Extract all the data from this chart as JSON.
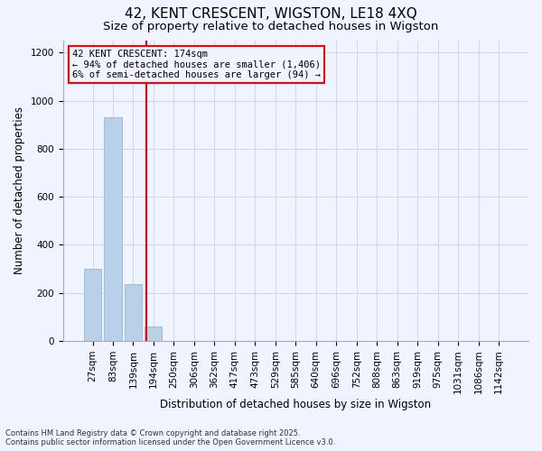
{
  "title": "42, KENT CRESCENT, WIGSTON, LE18 4XQ",
  "subtitle": "Size of property relative to detached houses in Wigston",
  "xlabel": "Distribution of detached houses by size in Wigston",
  "ylabel": "Number of detached properties",
  "categories": [
    "27sqm",
    "83sqm",
    "139sqm",
    "194sqm",
    "250sqm",
    "306sqm",
    "362sqm",
    "417sqm",
    "473sqm",
    "529sqm",
    "585sqm",
    "640sqm",
    "696sqm",
    "752sqm",
    "808sqm",
    "863sqm",
    "919sqm",
    "975sqm",
    "1031sqm",
    "1086sqm",
    "1142sqm"
  ],
  "values": [
    300,
    930,
    235,
    60,
    0,
    0,
    0,
    0,
    0,
    0,
    0,
    0,
    0,
    0,
    0,
    0,
    0,
    0,
    0,
    0,
    0
  ],
  "bar_color": "#b8d0e8",
  "bar_edgecolor": "#90b8d8",
  "vline_color": "red",
  "property_sqm": 174,
  "bin_edges_sqm": [
    27,
    83,
    139,
    194,
    250,
    306,
    362,
    417,
    473,
    529,
    585,
    640,
    696,
    752,
    808,
    863,
    919,
    975,
    1031,
    1086,
    1142
  ],
  "annotation_line1": "42 KENT CRESCENT: 174sqm",
  "annotation_line2": "← 94% of detached houses are smaller (1,406)",
  "annotation_line3": "6% of semi-detached houses are larger (94) →",
  "annotation_box_color": "red",
  "ylim": [
    0,
    1250
  ],
  "yticks": [
    0,
    200,
    400,
    600,
    800,
    1000,
    1200
  ],
  "background_color": "#f0f4ff",
  "grid_color": "#d0d8e8",
  "footnote": "Contains HM Land Registry data © Crown copyright and database right 2025.\nContains public sector information licensed under the Open Government Licence v3.0.",
  "title_fontsize": 11,
  "subtitle_fontsize": 9.5,
  "axis_label_fontsize": 8.5,
  "tick_fontsize": 7.5,
  "annotation_fontsize": 7.5,
  "footnote_fontsize": 6
}
